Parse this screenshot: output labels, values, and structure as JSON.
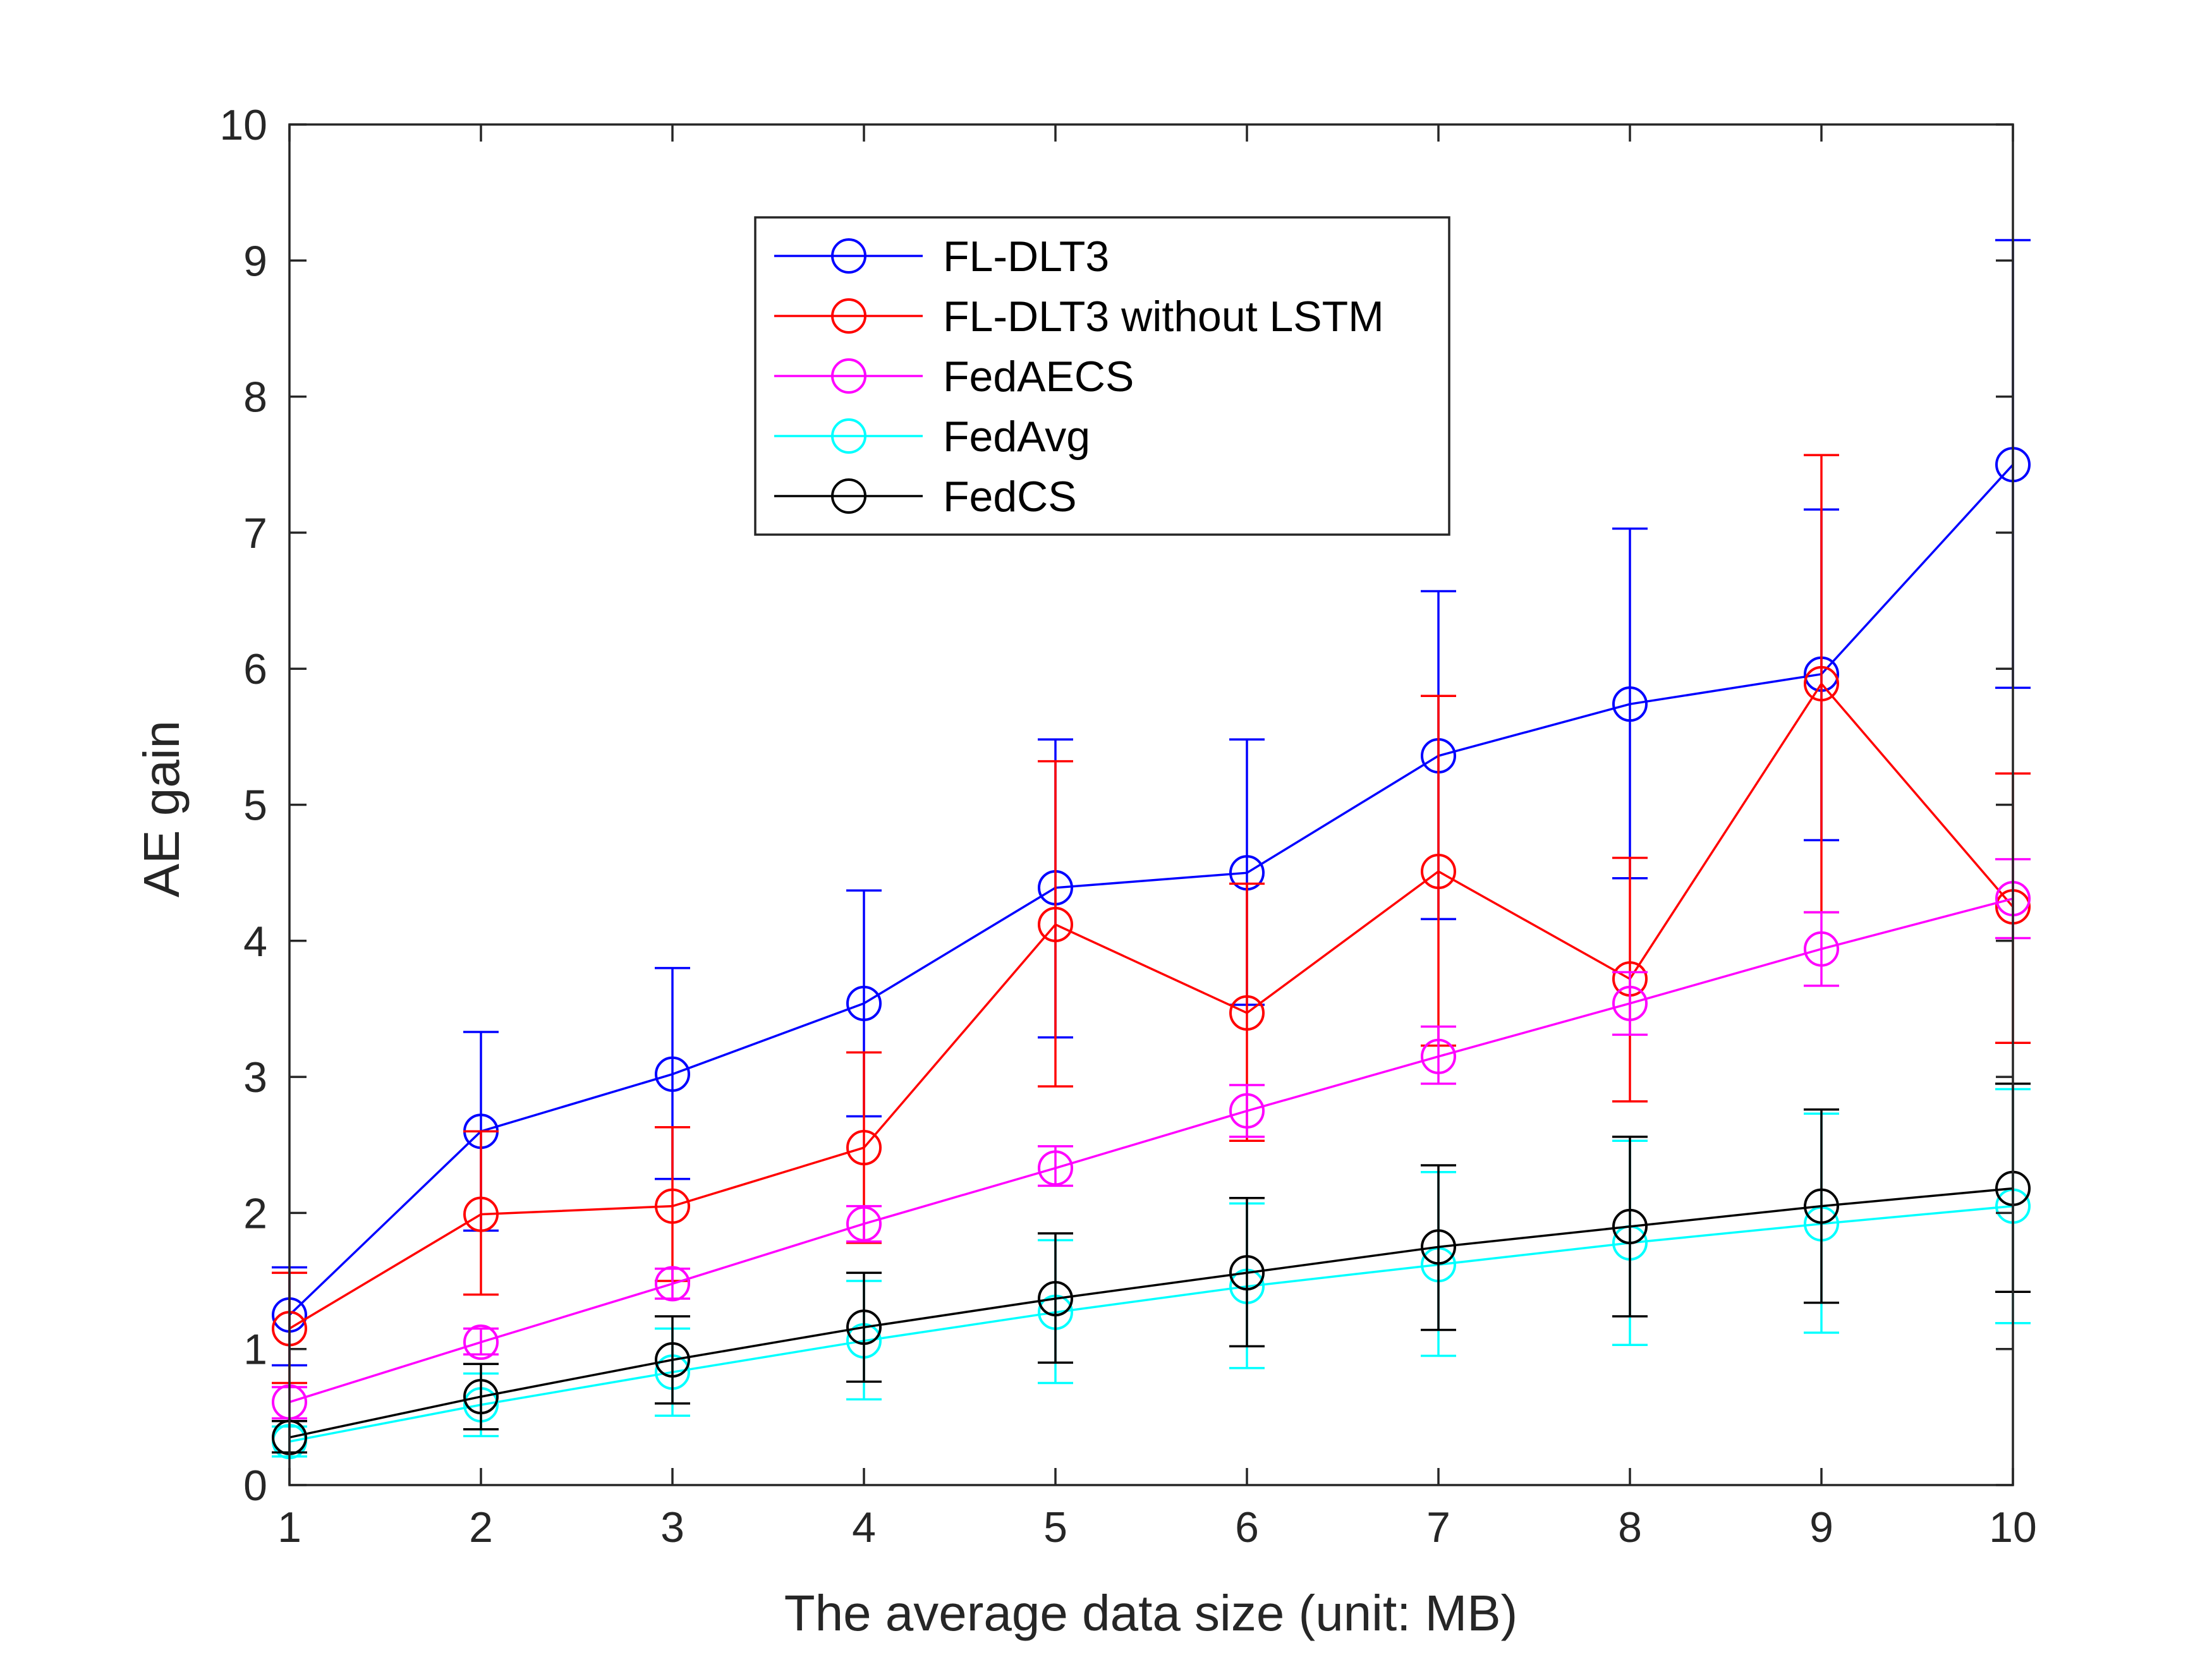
{
  "chart_data": {
    "type": "line",
    "title": "",
    "xlabel": "The average data size (unit: MB)",
    "ylabel": "AE gain",
    "xlim": [
      1,
      10
    ],
    "ylim": [
      0,
      10
    ],
    "xticks": [
      1,
      2,
      3,
      4,
      5,
      6,
      7,
      8,
      9,
      10
    ],
    "yticks": [
      0,
      1,
      2,
      3,
      4,
      5,
      6,
      7,
      8,
      9,
      10
    ],
    "legend_position": "top-center",
    "grid": false,
    "x": [
      1,
      2,
      3,
      4,
      5,
      6,
      7,
      8,
      9,
      10
    ],
    "series": [
      {
        "name": "FL-DLT3",
        "color": "#0000ff",
        "values": [
          1.25,
          2.6,
          3.02,
          3.54,
          4.39,
          4.5,
          5.36,
          5.74,
          5.96,
          7.5
        ],
        "err_low": [
          0.88,
          1.87,
          2.25,
          2.71,
          3.29,
          3.53,
          4.16,
          4.46,
          4.74,
          5.86
        ],
        "err_high": [
          1.6,
          3.33,
          3.8,
          4.37,
          5.48,
          5.48,
          6.57,
          7.03,
          7.17,
          9.15
        ]
      },
      {
        "name": "FL-DLT3 without LSTM",
        "color": "#ff0000",
        "values": [
          1.15,
          1.99,
          2.05,
          2.48,
          4.12,
          3.47,
          4.51,
          3.72,
          5.89,
          4.25
        ],
        "err_low": [
          0.75,
          1.4,
          1.5,
          1.78,
          2.93,
          2.53,
          3.23,
          2.82,
          4.21,
          3.25
        ],
        "err_high": [
          1.56,
          2.6,
          2.63,
          3.18,
          5.32,
          4.42,
          5.8,
          4.61,
          7.57,
          5.23
        ]
      },
      {
        "name": "FedAECS",
        "color": "#ff00ff",
        "values": [
          0.61,
          1.05,
          1.48,
          1.92,
          2.33,
          2.75,
          3.15,
          3.54,
          3.94,
          4.31
        ],
        "err_low": [
          0.49,
          0.96,
          1.37,
          1.79,
          2.2,
          2.56,
          2.95,
          3.31,
          3.67,
          4.02
        ],
        "err_high": [
          0.72,
          1.15,
          1.59,
          2.05,
          2.49,
          2.94,
          3.37,
          3.77,
          4.21,
          4.6
        ]
      },
      {
        "name": "FedAvg",
        "color": "#00ffff",
        "values": [
          0.32,
          0.59,
          0.83,
          1.06,
          1.27,
          1.46,
          1.62,
          1.78,
          1.92,
          2.05
        ],
        "err_low": [
          0.21,
          0.36,
          0.51,
          0.63,
          0.75,
          0.86,
          0.95,
          1.03,
          1.12,
          1.19
        ],
        "err_high": [
          0.43,
          0.82,
          1.15,
          1.5,
          1.8,
          2.07,
          2.3,
          2.53,
          2.73,
          2.91
        ]
      },
      {
        "name": "FedCS",
        "color": "#000000",
        "values": [
          0.35,
          0.65,
          0.92,
          1.16,
          1.37,
          1.56,
          1.75,
          1.9,
          2.05,
          2.18
        ],
        "err_low": [
          0.24,
          0.41,
          0.6,
          0.76,
          0.9,
          1.02,
          1.14,
          1.24,
          1.34,
          1.42
        ],
        "err_high": [
          0.47,
          0.89,
          1.24,
          1.56,
          1.85,
          2.11,
          2.35,
          2.56,
          2.76,
          2.95
        ]
      }
    ]
  }
}
